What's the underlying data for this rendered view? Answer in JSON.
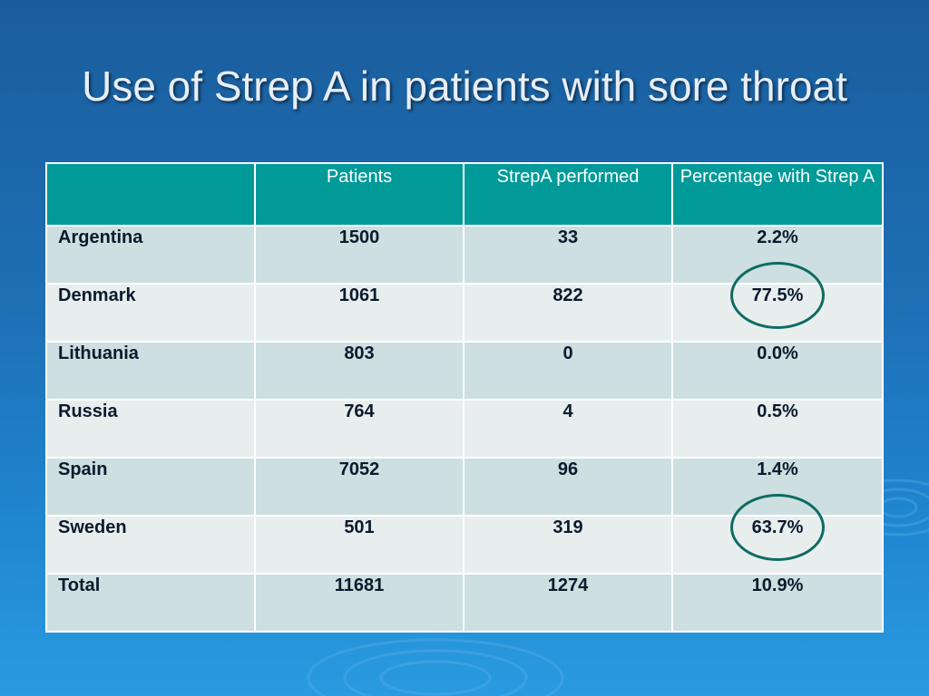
{
  "slide": {
    "title": "Use of Strep A in patients with sore throat"
  },
  "table": {
    "headers": [
      "",
      "Patients",
      "StrepA performed",
      "Percentage with Strep A"
    ],
    "rows": [
      {
        "country": "Argentina",
        "patients": "1500",
        "strepa": "33",
        "pct": "2.2%"
      },
      {
        "country": "Denmark",
        "patients": "1061",
        "strepa": "822",
        "pct": "77.5%"
      },
      {
        "country": "Lithuania",
        "patients": "803",
        "strepa": "0",
        "pct": "0.0%"
      },
      {
        "country": "Russia",
        "patients": "764",
        "strepa": "4",
        "pct": "0.5%"
      },
      {
        "country": "Spain",
        "patients": "7052",
        "strepa": "96",
        "pct": "1.4%"
      },
      {
        "country": "Sweden",
        "patients": "501",
        "strepa": "319",
        "pct": "63.7%"
      },
      {
        "country": "Total",
        "patients": "11681",
        "strepa": "1274",
        "pct": "10.9%"
      }
    ]
  },
  "colors": {
    "header_bg": "#009a99",
    "row_odd_bg": "#cddfe0",
    "row_even_bg": "#e8eeee",
    "highlight_ring": "#0e6b62"
  }
}
